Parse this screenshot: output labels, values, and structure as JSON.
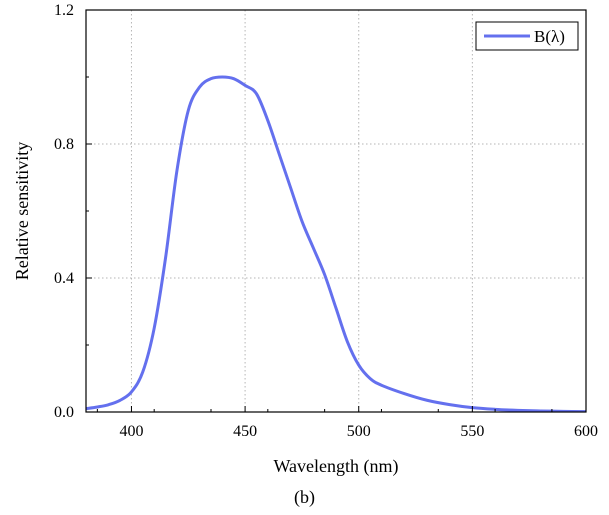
{
  "caption": "(b)",
  "chart_data": {
    "type": "line",
    "xlabel": "Wavelength (nm)",
    "ylabel": "Relative sensitivity",
    "xlim": [
      380,
      600
    ],
    "ylim": [
      0,
      1.2
    ],
    "x_ticks": [
      400,
      450,
      500,
      550,
      600
    ],
    "y_ticks": [
      0.0,
      0.4,
      0.8,
      1.2
    ],
    "x_tick_labels": [
      "400",
      "450",
      "500",
      "550",
      "600"
    ],
    "y_tick_labels": [
      "0.0",
      "0.4",
      "0.8",
      "1.2"
    ],
    "grid": "dotted, major ticks",
    "legend_position": "top-right",
    "series": [
      {
        "name": "B(λ)",
        "color": "#6470ee",
        "x": [
          380,
          385,
          390,
          395,
          400,
          405,
          410,
          415,
          420,
          425,
          430,
          435,
          440,
          445,
          450,
          455,
          460,
          465,
          470,
          475,
          480,
          485,
          490,
          495,
          500,
          505,
          510,
          520,
          530,
          540,
          550,
          560,
          570,
          580,
          590,
          600
        ],
        "y": [
          0.01,
          0.015,
          0.022,
          0.035,
          0.06,
          0.12,
          0.25,
          0.46,
          0.72,
          0.9,
          0.97,
          0.995,
          1.0,
          0.995,
          0.975,
          0.95,
          0.87,
          0.77,
          0.67,
          0.57,
          0.49,
          0.41,
          0.31,
          0.21,
          0.14,
          0.1,
          0.08,
          0.055,
          0.035,
          0.022,
          0.013,
          0.008,
          0.005,
          0.003,
          0.002,
          0.001
        ]
      }
    ]
  }
}
